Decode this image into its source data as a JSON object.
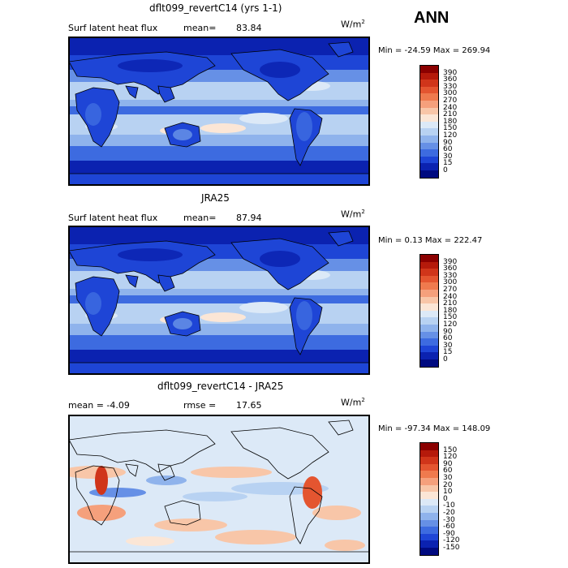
{
  "season": "ANN",
  "panels": [
    {
      "id": "model",
      "title": "dflt099_revertC14 (yrs 1-1)",
      "variable": "Surf latent heat flux",
      "stat_label": "mean=",
      "stat_value": "83.84",
      "units": "W/m",
      "units_sup": "2",
      "minmax": "Min = -24.59 Max = 269.94",
      "scale": "abs"
    },
    {
      "id": "obs",
      "title": "JRA25",
      "variable": "Surf latent heat flux",
      "stat_label": "mean=",
      "stat_value": "87.94",
      "units": "W/m",
      "units_sup": "2",
      "minmax": "Min =   0.13 Max = 222.47",
      "scale": "abs"
    },
    {
      "id": "diff",
      "title": "dflt099_revertC14 - JRA25",
      "variable": "mean =   -4.09",
      "stat_label": "rmse =",
      "stat_value": "17.65",
      "units": "W/m",
      "units_sup": "2",
      "minmax": "Min = -97.34 Max = 148.09",
      "scale": "diff"
    }
  ],
  "colorbars": {
    "abs": {
      "labels": [
        "390",
        "360",
        "330",
        "300",
        "270",
        "240",
        "210",
        "180",
        "150",
        "120",
        "90",
        "60",
        "30",
        "15",
        "0"
      ],
      "colors": [
        "#8b0000",
        "#b51a0b",
        "#d0351a",
        "#e45530",
        "#ef7a4e",
        "#f5a07c",
        "#f8c6a8",
        "#fbe6d6",
        "#dce9f7",
        "#b8d2f2",
        "#8fb3ec",
        "#6690e6",
        "#3d6be0",
        "#1e45d6",
        "#0b22b0",
        "#000a80"
      ]
    },
    "diff": {
      "labels": [
        "150",
        "120",
        "90",
        "60",
        "30",
        "20",
        "10",
        "0",
        "-10",
        "-20",
        "-30",
        "-60",
        "-90",
        "-120",
        "-150"
      ],
      "colors": [
        "#8b0000",
        "#b51a0b",
        "#d0351a",
        "#e45530",
        "#ef7a4e",
        "#f5a07c",
        "#f8c6a8",
        "#fbe6d6",
        "#dce9f7",
        "#b8d2f2",
        "#8fb3ec",
        "#6690e6",
        "#3d6be0",
        "#1e45d6",
        "#0b22b0",
        "#000a80"
      ]
    }
  }
}
